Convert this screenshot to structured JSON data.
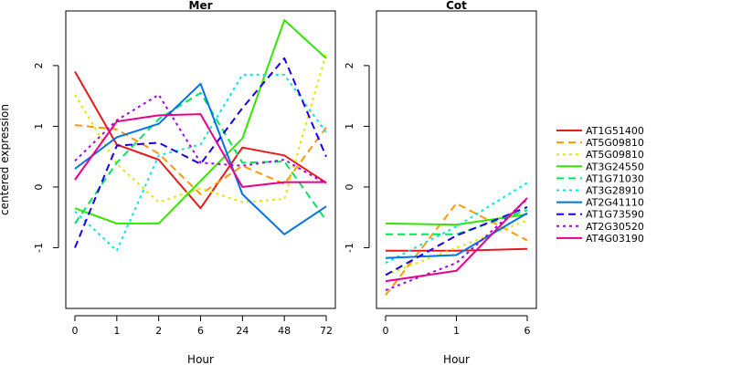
{
  "chart_data": [
    {
      "type": "line",
      "title": "Mer",
      "xlabel": "Hour",
      "ylabel": "centered expression",
      "categories": [
        "0",
        "1",
        "2",
        "6",
        "24",
        "48",
        "72"
      ],
      "ylim": [
        -2,
        2.9
      ],
      "yticks": [
        -1,
        0,
        1,
        2
      ],
      "series": [
        {
          "name": "AT1G51400",
          "values": [
            1.9,
            0.7,
            0.45,
            -0.35,
            0.65,
            0.52,
            0.07
          ]
        },
        {
          "name": "AT5G09810",
          "values": [
            1.02,
            0.95,
            0.55,
            -0.12,
            0.35,
            0.05,
            0.98
          ]
        },
        {
          "name": "AT5G09810",
          "values": [
            1.52,
            0.38,
            -0.25,
            -0.02,
            -0.25,
            -0.2,
            2.2
          ]
        },
        {
          "name": "AT3G24550",
          "values": [
            -0.35,
            -0.6,
            -0.6,
            0.1,
            0.8,
            2.75,
            2.12
          ]
        },
        {
          "name": "AT1G71030",
          "values": [
            -0.6,
            0.4,
            1.12,
            1.55,
            0.4,
            0.42,
            -0.55
          ]
        },
        {
          "name": "AT3G28910",
          "values": [
            -0.4,
            -1.05,
            0.52,
            0.7,
            1.85,
            1.85,
            0.9
          ]
        },
        {
          "name": "AT2G41110",
          "values": [
            0.3,
            0.82,
            1.04,
            1.7,
            -0.12,
            -0.78,
            -0.32
          ]
        },
        {
          "name": "AT1G73590",
          "values": [
            -1.0,
            0.68,
            0.73,
            0.38,
            1.3,
            2.12,
            0.5
          ]
        },
        {
          "name": "AT2G30520",
          "values": [
            0.43,
            1.1,
            1.52,
            0.4,
            0.35,
            0.45,
            0.05
          ]
        },
        {
          "name": "AT4G03190",
          "values": [
            0.12,
            1.08,
            1.18,
            1.2,
            0.0,
            0.08,
            0.08
          ]
        }
      ]
    },
    {
      "type": "line",
      "title": "Cot",
      "xlabel": "Hour",
      "ylabel": "",
      "categories": [
        "0",
        "1",
        "6"
      ],
      "ylim": [
        -2,
        2.9
      ],
      "yticks": [
        -1,
        0,
        1,
        2
      ],
      "series": [
        {
          "name": "AT1G51400",
          "values": [
            -1.05,
            -1.05,
            -1.02
          ]
        },
        {
          "name": "AT5G09810",
          "values": [
            -1.78,
            -0.27,
            -0.88
          ]
        },
        {
          "name": "AT5G09810",
          "values": [
            -1.45,
            -1.0,
            -0.55
          ]
        },
        {
          "name": "AT3G24550",
          "values": [
            -0.6,
            -0.62,
            -0.45
          ]
        },
        {
          "name": "AT1G71030",
          "values": [
            -0.78,
            -0.78,
            -0.38
          ]
        },
        {
          "name": "AT3G28910",
          "values": [
            -1.25,
            -0.65,
            0.07
          ]
        },
        {
          "name": "AT2G41110",
          "values": [
            -1.17,
            -1.12,
            -0.43
          ]
        },
        {
          "name": "AT1G73590",
          "values": [
            -1.45,
            -0.8,
            -0.33
          ]
        },
        {
          "name": "AT2G30520",
          "values": [
            -1.7,
            -1.25,
            -0.2
          ]
        },
        {
          "name": "AT4G03190",
          "values": [
            -1.55,
            -1.38,
            -0.18
          ]
        }
      ]
    }
  ],
  "legend": {
    "position": "right",
    "items": [
      {
        "label": "AT1G51400",
        "color": "#e41a1c",
        "dash": "solid"
      },
      {
        "label": "AT5G09810",
        "color": "#ff9900",
        "dash": "dashed"
      },
      {
        "label": "AT5G09810",
        "color": "#e6e600",
        "dash": "dotted"
      },
      {
        "label": "AT3G24550",
        "color": "#33e600",
        "dash": "solid"
      },
      {
        "label": "AT1G71030",
        "color": "#00e65c",
        "dash": "dashed"
      },
      {
        "label": "AT3G28910",
        "color": "#00e6e6",
        "dash": "dotted"
      },
      {
        "label": "AT2G41110",
        "color": "#0073e6",
        "dash": "solid"
      },
      {
        "label": "AT1G73590",
        "color": "#1a00e6",
        "dash": "dashed"
      },
      {
        "label": "AT2G30520",
        "color": "#a600e6",
        "dash": "dotted"
      },
      {
        "label": "AT4G03190",
        "color": "#e6008a",
        "dash": "solid"
      }
    ]
  }
}
